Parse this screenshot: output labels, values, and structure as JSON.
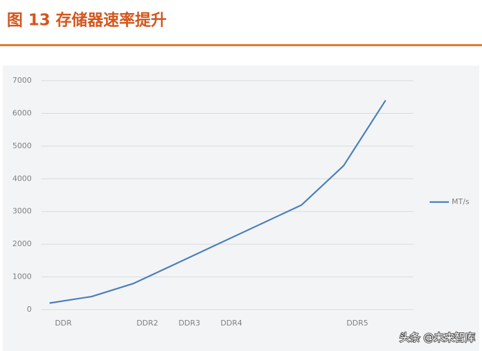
{
  "chart_data": {
    "type": "line",
    "title": "图 13 存储器速率提升",
    "categories": [
      "DDR",
      null,
      "DDR2",
      "DDR3",
      "DDR4",
      null,
      null,
      "DDR5",
      null
    ],
    "series": [
      {
        "name": "MT/s",
        "color": "#4a7ebb",
        "values": [
          200,
          400,
          800,
          1400,
          2000,
          2600,
          3200,
          4400,
          6400
        ]
      }
    ],
    "ylim": [
      0,
      7000
    ],
    "yticks": [
      0,
      1000,
      2000,
      3000,
      4000,
      5000,
      6000,
      7000
    ],
    "grid": true,
    "legend": "right"
  },
  "watermark": "头条 @未来智库"
}
